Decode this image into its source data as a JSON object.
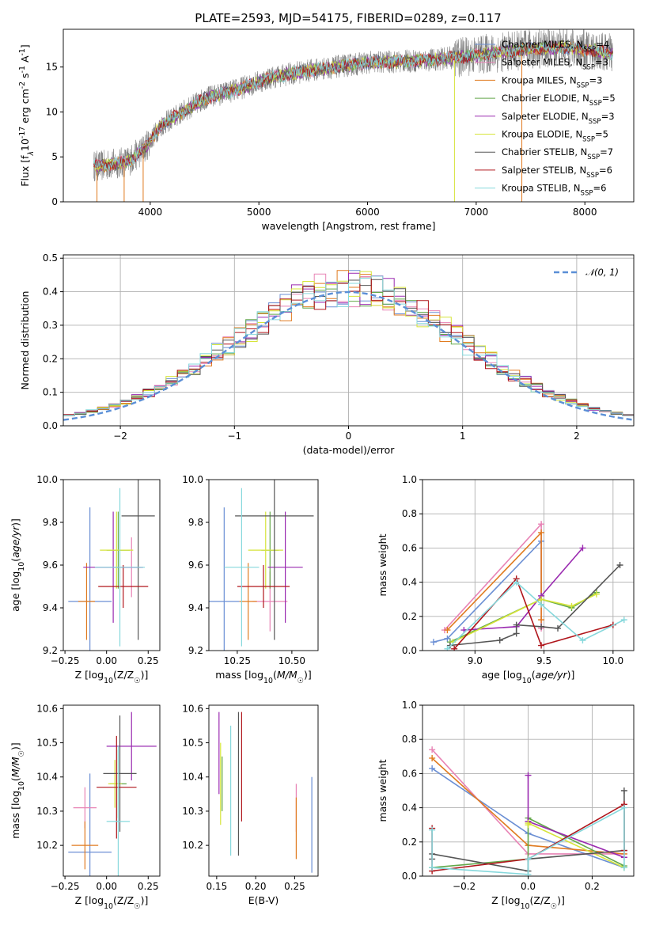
{
  "title": "PLATE=2593, MJD=54175, FIBERID=0289, z=0.117",
  "models": [
    {
      "name": "Chabrier MILES, N$_{SSP}$=4",
      "base": "Chabrier MILES, N",
      "sub": "SSP",
      "tail": "=4",
      "color": "#6b8fd4"
    },
    {
      "name": "Salpeter MILES, N$_{SSP}$=3",
      "base": "Salpeter MILES, N",
      "sub": "SSP",
      "tail": "=3",
      "color": "#e883b5"
    },
    {
      "name": "Kroupa MILES, N$_{SSP}$=3",
      "base": "Kroupa MILES, N",
      "sub": "SSP",
      "tail": "=3",
      "color": "#e07b20"
    },
    {
      "name": "Chabrier ELODIE, N$_{SSP}$=5",
      "base": "Chabrier ELODIE, N",
      "sub": "SSP",
      "tail": "=5",
      "color": "#63a84a"
    },
    {
      "name": "Salpeter ELODIE, N$_{SSP}$=3",
      "base": "Salpeter ELODIE, N",
      "sub": "SSP",
      "tail": "=3",
      "color": "#9a2ab0"
    },
    {
      "name": "Kroupa ELODIE, N$_{SSP}$=5",
      "base": "Kroupa ELODIE, N",
      "sub": "SSP",
      "tail": "=5",
      "color": "#d6e43a"
    },
    {
      "name": "Chabrier STELIB, N$_{SSP}$=7",
      "base": "Chabrier STELIB, N",
      "sub": "SSP",
      "tail": "=7",
      "color": "#555555"
    },
    {
      "name": "Salpeter STELIB, N$_{SSP}$=6",
      "base": "Salpeter STELIB, N",
      "sub": "SSP",
      "tail": "=6",
      "color": "#b0161c"
    },
    {
      "name": "Kroupa STELIB, N$_{SSP}$=6",
      "base": "Kroupa STELIB, N",
      "sub": "SSP",
      "tail": "=6",
      "color": "#86d8dc"
    }
  ],
  "chart_data": [
    {
      "id": "spectrum",
      "type": "line",
      "xlabel": "wavelength [Angstrom, rest frame]",
      "ylabel": "Flux [f$_\\lambda$10$^{-17}$ erg cm$^{-2}$ s$^{-1}$ A$^{-1}$]",
      "xlim": [
        3200,
        8450
      ],
      "ylim": [
        0,
        19.2
      ],
      "xticks": [
        4000,
        5000,
        6000,
        7000,
        8000
      ],
      "yticks": [
        0,
        5,
        10,
        15
      ],
      "legend": "upper-right",
      "observed_color": "#808080",
      "continuum": {
        "x": [
          3550,
          3800,
          3950,
          4100,
          4300,
          4500,
          4800,
          5100,
          5400,
          5700,
          6000,
          6300,
          6600,
          6900,
          7200,
          7500,
          7800,
          8100,
          8250
        ],
        "y": [
          4.0,
          4.5,
          6.0,
          8.5,
          10.0,
          11.5,
          12.5,
          13.8,
          14.5,
          15.0,
          15.5,
          15.6,
          15.8,
          16.2,
          16.6,
          17.0,
          17.2,
          16.8,
          16.5
        ]
      }
    },
    {
      "id": "residuals",
      "type": "step",
      "xlabel": "(data-model)/error",
      "ylabel": "Normed distribution",
      "xlim": [
        -2.5,
        2.5
      ],
      "ylim": [
        0,
        0.51
      ],
      "xticks": [
        -2,
        -1,
        0,
        1,
        2
      ],
      "yticks": [
        0.0,
        0.1,
        0.2,
        0.3,
        0.4,
        0.5
      ],
      "bin_width": 0.1,
      "reference_curve": {
        "name": "$\\mathcal{N}(0,1)$",
        "mu": 0,
        "sigma": 1,
        "color": "#5b8fd6"
      },
      "legend": "upper-right"
    },
    {
      "id": "age-vs-Z",
      "type": "errorbar",
      "xlabel": "Z [log$_{10}$(Z/Z$_\\odot$)]",
      "ylabel": "age  [log$_{10}$($age/yr$)]",
      "xlim": [
        -0.26,
        0.32
      ],
      "ylim": [
        9.2,
        10.0
      ],
      "xticks": [
        -0.25,
        0.0,
        0.25
      ],
      "ytick_labels": [
        "9.2",
        "9.4",
        "9.6",
        "9.8",
        "10.0"
      ],
      "points": [
        {
          "model": 0,
          "x": -0.1,
          "y": 9.43,
          "xerr": 0.13,
          "yerr": 0.44
        },
        {
          "model": 1,
          "x": 0.15,
          "y": 9.59,
          "xerr": 0.06,
          "yerr": 0.14
        },
        {
          "model": 2,
          "x": -0.12,
          "y": 9.43,
          "xerr": 0.05,
          "yerr": 0.18
        },
        {
          "model": 3,
          "x": 0.07,
          "y": 9.67,
          "xerr": 0.07,
          "yerr": 0.18
        },
        {
          "model": 4,
          "x": 0.04,
          "y": 9.59,
          "xerr": 0.18,
          "yerr": 0.26
        },
        {
          "model": 5,
          "x": 0.06,
          "y": 9.67,
          "xerr": 0.1,
          "yerr": 0.18
        },
        {
          "model": 6,
          "x": 0.19,
          "y": 9.83,
          "xerr": 0.1,
          "yerr": 0.58
        },
        {
          "model": 7,
          "x": 0.1,
          "y": 9.5,
          "xerr": 0.15,
          "yerr": 0.1
        },
        {
          "model": 8,
          "x": 0.08,
          "y": 9.59,
          "xerr": 0.15,
          "yerr": 0.37
        }
      ]
    },
    {
      "id": "age-vs-mass",
      "type": "errorbar",
      "xlabel": "mass [log$_{10}$($M/M_\\odot$)]",
      "ylabel": "",
      "xlim": [
        10.12,
        10.62
      ],
      "ylim": [
        9.2,
        10.0
      ],
      "xticks": [
        10.25,
        10.5
      ],
      "ytick_labels": [
        "9.2",
        "9.4",
        "9.6",
        "9.8",
        "10.0"
      ],
      "points": [
        {
          "model": 0,
          "x": 10.19,
          "y": 9.43,
          "xerr": 0.07,
          "yerr": 0.44
        },
        {
          "model": 1,
          "x": 10.4,
          "y": 9.43,
          "xerr": 0.08,
          "yerr": 0.14
        },
        {
          "model": 2,
          "x": 10.3,
          "y": 9.43,
          "xerr": 0.04,
          "yerr": 0.18
        },
        {
          "model": 3,
          "x": 10.4,
          "y": 9.67,
          "xerr": 0.04,
          "yerr": 0.18
        },
        {
          "model": 4,
          "x": 10.47,
          "y": 9.59,
          "xerr": 0.08,
          "yerr": 0.26
        },
        {
          "model": 5,
          "x": 10.38,
          "y": 9.67,
          "xerr": 0.08,
          "yerr": 0.18
        },
        {
          "model": 6,
          "x": 10.42,
          "y": 9.83,
          "xerr": 0.18,
          "yerr": 0.58
        },
        {
          "model": 7,
          "x": 10.37,
          "y": 9.5,
          "xerr": 0.12,
          "yerr": 0.1
        },
        {
          "model": 8,
          "x": 10.27,
          "y": 9.59,
          "xerr": 0.08,
          "yerr": 0.37
        }
      ]
    },
    {
      "id": "weight-vs-age",
      "type": "line",
      "xlabel": "age  [log$_{10}$($age/yr$)]",
      "ylabel": "mass weight",
      "xlim": [
        8.62,
        10.15
      ],
      "ylim": [
        0,
        1.0
      ],
      "xticks": [
        9.0,
        9.5,
        10.0
      ],
      "yticks": [
        0.0,
        0.2,
        0.4,
        0.6,
        0.8,
        1.0
      ],
      "series": [
        {
          "model": 0,
          "x": [
            8.7,
            8.8,
            9.48,
            9.48
          ],
          "y": [
            0.05,
            0.07,
            0.64,
            0.3
          ]
        },
        {
          "model": 1,
          "x": [
            8.78,
            9.48,
            9.48
          ],
          "y": [
            0.12,
            0.74,
            0.13
          ]
        },
        {
          "model": 2,
          "x": [
            8.8,
            9.48,
            9.48
          ],
          "y": [
            0.12,
            0.69,
            0.18
          ]
        },
        {
          "model": 3,
          "x": [
            8.82,
            9.48,
            9.7,
            9.88
          ],
          "y": [
            0.05,
            0.3,
            0.25,
            0.34
          ]
        },
        {
          "model": 4,
          "x": [
            8.92,
            9.3,
            9.48,
            9.78
          ],
          "y": [
            0.12,
            0.14,
            0.32,
            0.6
          ]
        },
        {
          "model": 5,
          "x": [
            8.84,
            9.48,
            9.7,
            9.88
          ],
          "y": [
            0.05,
            0.3,
            0.26,
            0.33
          ]
        },
        {
          "model": 6,
          "x": [
            8.82,
            9.18,
            9.3,
            9.3,
            9.48,
            9.6,
            10.05
          ],
          "y": [
            0.03,
            0.06,
            0.1,
            0.15,
            0.14,
            0.13,
            0.5
          ]
        },
        {
          "model": 7,
          "x": [
            8.85,
            9.3,
            9.48,
            10.0
          ],
          "y": [
            0.01,
            0.42,
            0.03,
            0.15
          ]
        },
        {
          "model": 8,
          "x": [
            8.8,
            9.3,
            9.48,
            9.78,
            10.08
          ],
          "y": [
            0.01,
            0.4,
            0.27,
            0.06,
            0.18
          ]
        }
      ]
    },
    {
      "id": "mass-vs-Z",
      "type": "errorbar",
      "xlabel": "Z [log$_{10}$(Z/Z$_\\odot$)]",
      "ylabel": "mass [log$_{10}$($M/M_\\odot$)]",
      "xlim": [
        -0.26,
        0.32
      ],
      "ylim": [
        10.11,
        10.61
      ],
      "xticks": [
        -0.25,
        0.0,
        0.25
      ],
      "yticks": [
        10.2,
        10.3,
        10.4,
        10.5,
        10.6
      ],
      "points": [
        {
          "model": 0,
          "x": -0.1,
          "y": 10.18,
          "xerr": 0.13,
          "yerr": 0.23
        },
        {
          "model": 1,
          "x": -0.13,
          "y": 10.31,
          "xerr": 0.07,
          "yerr": 0.06
        },
        {
          "model": 2,
          "x": -0.13,
          "y": 10.2,
          "xerr": 0.08,
          "yerr": 0.07
        },
        {
          "model": 3,
          "x": 0.07,
          "y": 10.38,
          "xerr": 0.05,
          "yerr": 0.1
        },
        {
          "model": 4,
          "x": 0.15,
          "y": 10.49,
          "xerr": 0.15,
          "yerr": 0.1
        },
        {
          "model": 5,
          "x": 0.05,
          "y": 10.38,
          "xerr": 0.04,
          "yerr": 0.07
        },
        {
          "model": 6,
          "x": 0.08,
          "y": 10.41,
          "xerr": 0.1,
          "yerr": 0.17
        },
        {
          "model": 7,
          "x": 0.06,
          "y": 10.37,
          "xerr": 0.12,
          "yerr": 0.15
        },
        {
          "model": 8,
          "x": 0.07,
          "y": 10.27,
          "xerr": 0.07,
          "yerr": 0.22
        }
      ]
    },
    {
      "id": "mass-vs-ebv",
      "type": "errorbar",
      "xlabel": "E(B-V)",
      "ylabel": "",
      "xlim": [
        0.14,
        0.28
      ],
      "ylim": [
        10.11,
        10.61
      ],
      "xticks": [
        0.15,
        0.2,
        0.25
      ],
      "yticks": [
        10.2,
        10.3,
        10.4,
        10.5,
        10.6
      ],
      "points": [
        {
          "model": 0,
          "x": 0.272,
          "y": 10.26,
          "xerr": 0,
          "yerr": 0.14
        },
        {
          "model": 1,
          "x": 0.252,
          "y": 10.31,
          "xerr": 0,
          "yerr": 0.07
        },
        {
          "model": 2,
          "x": 0.252,
          "y": 10.25,
          "xerr": 0,
          "yerr": 0.09
        },
        {
          "model": 3,
          "x": 0.157,
          "y": 10.38,
          "xerr": 0,
          "yerr": 0.08
        },
        {
          "model": 4,
          "x": 0.153,
          "y": 10.47,
          "xerr": 0,
          "yerr": 0.12
        },
        {
          "model": 5,
          "x": 0.155,
          "y": 10.38,
          "xerr": 0,
          "yerr": 0.12
        },
        {
          "model": 6,
          "x": 0.178,
          "y": 10.38,
          "xerr": 0,
          "yerr": 0.21
        },
        {
          "model": 7,
          "x": 0.182,
          "y": 10.43,
          "xerr": 0,
          "yerr": 0.16
        },
        {
          "model": 8,
          "x": 0.168,
          "y": 10.36,
          "xerr": 0,
          "yerr": 0.19
        }
      ]
    },
    {
      "id": "weight-vs-Z",
      "type": "line",
      "xlabel": "Z [log$_{10}$(Z/Z$_\\odot$)]",
      "ylabel": "mass weight",
      "xlim": [
        -0.33,
        0.33
      ],
      "ylim": [
        0,
        1.0
      ],
      "xticks": [
        -0.2,
        0.0,
        0.2
      ],
      "yticks": [
        0.0,
        0.2,
        0.4,
        0.6,
        0.8,
        1.0
      ],
      "series": [
        {
          "model": 0,
          "x": [
            -0.3,
            0.0,
            0.3
          ],
          "y": [
            0.63,
            0.25,
            0.05
          ]
        },
        {
          "model": 1,
          "x": [
            -0.3,
            0.0,
            0.3
          ],
          "y": [
            0.74,
            0.13,
            0.13
          ]
        },
        {
          "model": 2,
          "x": [
            -0.3,
            0.0,
            0.3
          ],
          "y": [
            0.69,
            0.18,
            0.13
          ]
        },
        {
          "model": 3,
          "x": [
            -0.3,
            0.0,
            0.0,
            0.3
          ],
          "y": [
            0.05,
            0.1,
            0.34,
            0.06
          ]
        },
        {
          "model": 4,
          "x": [
            0.0,
            0.0,
            0.3
          ],
          "y": [
            0.59,
            0.32,
            0.11
          ]
        },
        {
          "model": 5,
          "x": [
            0.0,
            0.0,
            0.3
          ],
          "y": [
            0.3,
            0.31,
            0.05
          ]
        },
        {
          "model": 6,
          "x": [
            -0.3,
            -0.3,
            0.0,
            0.0,
            0.3,
            0.3
          ],
          "y": [
            0.1,
            0.13,
            0.03,
            0.1,
            0.15,
            0.5
          ]
        },
        {
          "model": 7,
          "x": [
            -0.3,
            -0.3,
            0.0,
            0.3,
            0.3
          ],
          "y": [
            0.28,
            0.03,
            0.1,
            0.42,
            0.15
          ]
        },
        {
          "model": 8,
          "x": [
            -0.3,
            -0.3,
            0.0,
            0.0,
            0.3,
            0.3
          ],
          "y": [
            0.27,
            0.05,
            0.01,
            0.1,
            0.4,
            0.05
          ]
        }
      ]
    }
  ]
}
